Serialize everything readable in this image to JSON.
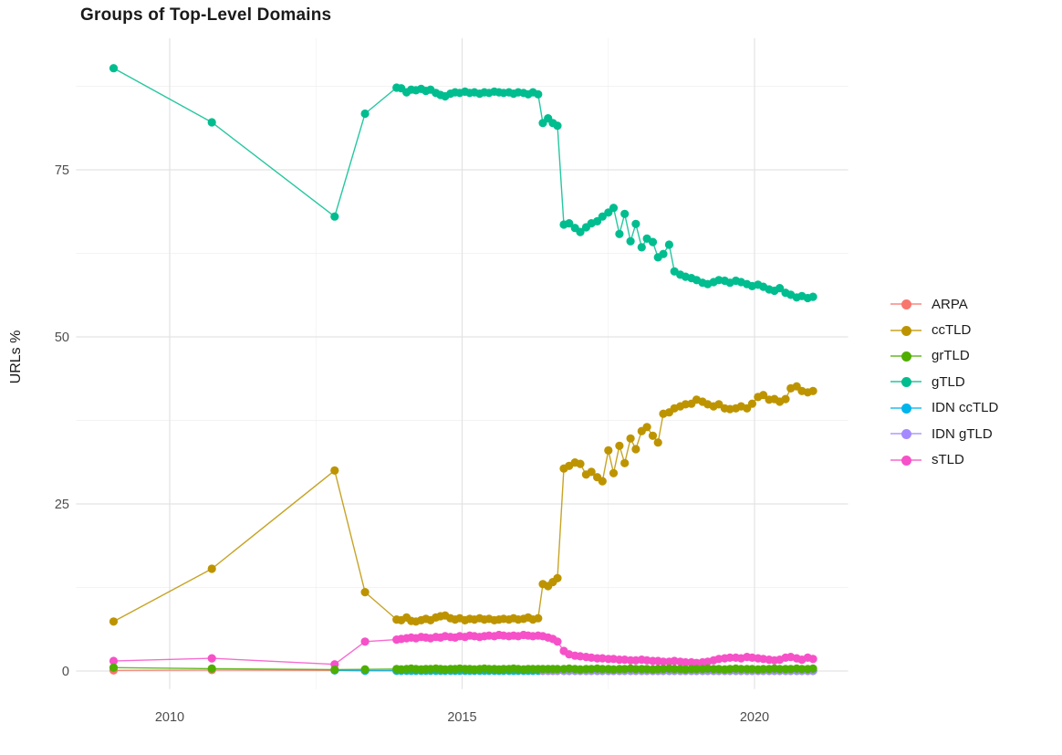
{
  "page": {
    "background": "#ffffff"
  },
  "chart_data": {
    "type": "line",
    "title": "Groups of Top-Level Domains",
    "xlabel": "",
    "ylabel": "URLs %",
    "grid": true,
    "legend_position": "right",
    "x_ticks": [
      2010,
      2015,
      2020
    ],
    "x_minor_ticks": [
      2012.5,
      2017.5
    ],
    "y_ticks": [
      0,
      25,
      50,
      75
    ],
    "y_minor_ticks": [
      12.5,
      37.5,
      62.5,
      87.5
    ],
    "xlim": [
      2008.4,
      2021.6
    ],
    "ylim": [
      -2.7,
      94.7
    ],
    "axis_text_color": "#4d4d4d",
    "grid_major_color": "#e3e3e3",
    "grid_minor_color": "#efefef",
    "x": [
      2009.04,
      2010.72,
      2012.82,
      2013.34,
      2013.88,
      2013.96,
      2014.05,
      2014.13,
      2014.21,
      2014.3,
      2014.38,
      2014.46,
      2014.55,
      2014.63,
      2014.71,
      2014.8,
      2014.88,
      2014.96,
      2015.05,
      2015.13,
      2015.21,
      2015.3,
      2015.38,
      2015.46,
      2015.55,
      2015.63,
      2015.71,
      2015.8,
      2015.88,
      2015.96,
      2016.05,
      2016.13,
      2016.21,
      2016.3,
      2016.38,
      2016.47,
      2016.55,
      2016.63,
      2016.74,
      2016.83,
      2016.93,
      2017.02,
      2017.12,
      2017.21,
      2017.31,
      2017.4,
      2017.5,
      2017.59,
      2017.69,
      2017.78,
      2017.88,
      2017.97,
      2018.07,
      2018.16,
      2018.26,
      2018.35,
      2018.44,
      2018.54,
      2018.63,
      2018.73,
      2018.82,
      2018.92,
      2019.01,
      2019.11,
      2019.2,
      2019.3,
      2019.39,
      2019.49,
      2019.58,
      2019.68,
      2019.77,
      2019.87,
      2019.96,
      2020.06,
      2020.15,
      2020.25,
      2020.34,
      2020.43,
      2020.53,
      2020.62,
      2020.72,
      2020.81,
      2020.91,
      2021.0
    ],
    "series": [
      {
        "name": "ARPA",
        "color": "#F8766D",
        "values": [
          0.1,
          0.15,
          0.1,
          0.05,
          0.05,
          0.05,
          0.05,
          0.05,
          0.05,
          0.05,
          0.05,
          0.05,
          0.05,
          0.05,
          0.05,
          0.05,
          0.05,
          0.05,
          0.05,
          0.05,
          0.05,
          0.05,
          0.05,
          0.05,
          0.05,
          0.05,
          0.05,
          0.05,
          0.05,
          0.05,
          0.05,
          0.05,
          0.05,
          0.05,
          0.05,
          0.05,
          0.05,
          0.05,
          0.05,
          0.05,
          0.05,
          0.05,
          0.05,
          0.05,
          0.05,
          0.05,
          0.05,
          0.05,
          0.05,
          0.05,
          0.05,
          0.05,
          0.05,
          0.05,
          0.05,
          0.05,
          0.05,
          0.05,
          0.05,
          0.05,
          0.05,
          0.05,
          0.05,
          0.05,
          0.05,
          0.05,
          0.05,
          0.05,
          0.05,
          0.05,
          0.05,
          0.05,
          0.05,
          0.05,
          0.05,
          0.05,
          0.05,
          0.05,
          0.05,
          0.05,
          0.05,
          0.05,
          0.05,
          0.05
        ]
      },
      {
        "name": "ccTLD",
        "color": "#BD9400",
        "values": [
          7.4,
          15.3,
          30.0,
          11.8,
          7.7,
          7.6,
          8.0,
          7.5,
          7.4,
          7.6,
          7.8,
          7.6,
          8.0,
          8.2,
          8.3,
          7.9,
          7.7,
          7.9,
          7.6,
          7.8,
          7.7,
          7.9,
          7.7,
          7.8,
          7.6,
          7.7,
          7.8,
          7.7,
          7.9,
          7.7,
          7.8,
          8.0,
          7.7,
          7.9,
          13.0,
          12.7,
          13.3,
          13.9,
          30.3,
          30.7,
          31.2,
          31.0,
          29.4,
          29.8,
          29.0,
          28.4,
          33.0,
          29.6,
          33.7,
          31.1,
          34.8,
          33.2,
          35.9,
          36.5,
          35.2,
          34.2,
          38.5,
          38.7,
          39.3,
          39.6,
          39.9,
          40.0,
          40.6,
          40.3,
          39.9,
          39.6,
          39.9,
          39.3,
          39.2,
          39.3,
          39.6,
          39.3,
          40.0,
          41.0,
          41.3,
          40.6,
          40.7,
          40.3,
          40.7,
          42.3,
          42.6,
          41.9,
          41.7,
          41.9
        ]
      },
      {
        "name": "grTLD",
        "color": "#4FAE00",
        "values": [
          0.5,
          0.35,
          0.2,
          0.25,
          0.3,
          0.25,
          0.3,
          0.35,
          0.3,
          0.25,
          0.3,
          0.3,
          0.35,
          0.3,
          0.25,
          0.3,
          0.3,
          0.35,
          0.3,
          0.3,
          0.25,
          0.3,
          0.35,
          0.3,
          0.3,
          0.25,
          0.3,
          0.3,
          0.35,
          0.3,
          0.25,
          0.3,
          0.3,
          0.3,
          0.3,
          0.3,
          0.3,
          0.3,
          0.3,
          0.35,
          0.3,
          0.25,
          0.3,
          0.3,
          0.35,
          0.3,
          0.3,
          0.25,
          0.3,
          0.3,
          0.35,
          0.3,
          0.3,
          0.3,
          0.25,
          0.3,
          0.3,
          0.35,
          0.3,
          0.3,
          0.25,
          0.3,
          0.3,
          0.3,
          0.35,
          0.3,
          0.3,
          0.25,
          0.3,
          0.35,
          0.3,
          0.3,
          0.3,
          0.25,
          0.3,
          0.3,
          0.35,
          0.3,
          0.3,
          0.3,
          0.35,
          0.3,
          0.3,
          0.35
        ]
      },
      {
        "name": "gTLD",
        "color": "#00BD8F",
        "values": [
          90.2,
          82.1,
          68.0,
          83.4,
          87.3,
          87.2,
          86.6,
          87.0,
          86.9,
          87.1,
          86.8,
          87.0,
          86.5,
          86.2,
          86.0,
          86.4,
          86.6,
          86.5,
          86.7,
          86.5,
          86.6,
          86.4,
          86.6,
          86.5,
          86.7,
          86.6,
          86.5,
          86.6,
          86.4,
          86.6,
          86.5,
          86.3,
          86.6,
          86.3,
          82.0,
          82.7,
          82.0,
          81.6,
          66.8,
          67.0,
          66.3,
          65.7,
          66.4,
          67.0,
          67.3,
          68.0,
          68.6,
          69.3,
          65.4,
          68.4,
          64.3,
          66.9,
          63.4,
          64.7,
          64.2,
          61.9,
          62.4,
          63.8,
          59.8,
          59.3,
          59.0,
          58.8,
          58.5,
          58.1,
          57.9,
          58.2,
          58.5,
          58.4,
          58.1,
          58.4,
          58.2,
          57.9,
          57.6,
          57.8,
          57.5,
          57.1,
          56.9,
          57.3,
          56.6,
          56.3,
          55.9,
          56.1,
          55.8,
          56.0
        ]
      },
      {
        "name": "IDN ccTLD",
        "color": "#00B4EC",
        "values": [
          null,
          null,
          0.1,
          0.05,
          0.05,
          0.05,
          0.05,
          0.05,
          0.05,
          0.05,
          0.05,
          0.05,
          0.05,
          0.05,
          0.05,
          0.05,
          0.05,
          0.05,
          0.05,
          0.05,
          0.05,
          0.05,
          0.05,
          0.05,
          0.05,
          0.05,
          0.05,
          0.05,
          0.05,
          0.05,
          0.05,
          0.05,
          0.05,
          0.05,
          0.05,
          0.05,
          0.05,
          0.05,
          0.03,
          0.03,
          0.03,
          0.03,
          0.03,
          0.03,
          0.03,
          0.03,
          0.03,
          0.03,
          0.03,
          0.03,
          0.03,
          0.03,
          0.03,
          0.03,
          0.03,
          0.03,
          0.03,
          0.03,
          0.03,
          0.03,
          0.03,
          0.03,
          0.03,
          0.03,
          0.03,
          0.03,
          0.03,
          0.03,
          0.03,
          0.03,
          0.03,
          0.03,
          0.03,
          0.03,
          0.03,
          0.03,
          0.03,
          0.03,
          0.03,
          0.03,
          0.03,
          0.03,
          0.03,
          0.03
        ]
      },
      {
        "name": "IDN gTLD",
        "color": "#A58AFF",
        "values": [
          null,
          null,
          null,
          null,
          null,
          null,
          null,
          null,
          null,
          null,
          null,
          null,
          null,
          null,
          null,
          null,
          null,
          null,
          null,
          null,
          null,
          null,
          null,
          null,
          null,
          null,
          null,
          null,
          null,
          null,
          null,
          null,
          null,
          null,
          0.03,
          0.03,
          0.03,
          0.03,
          0.03,
          0.03,
          0.03,
          0.03,
          0.03,
          0.03,
          0.03,
          0.03,
          0.03,
          0.03,
          0.03,
          0.03,
          0.03,
          0.03,
          0.03,
          0.03,
          0.03,
          0.03,
          0.03,
          0.03,
          0.03,
          0.03,
          0.03,
          0.03,
          0.03,
          0.03,
          0.03,
          0.03,
          0.03,
          0.03,
          0.03,
          0.03,
          0.03,
          0.03,
          0.03,
          0.03,
          0.03,
          0.03,
          0.03,
          0.03,
          0.03,
          0.03,
          0.03,
          0.03,
          0.03,
          0.03
        ]
      },
      {
        "name": "sTLD",
        "color": "#F651C8",
        "values": [
          1.5,
          1.9,
          1.0,
          4.4,
          4.7,
          4.8,
          4.9,
          5.0,
          4.9,
          5.1,
          5.0,
          4.9,
          5.1,
          5.0,
          5.2,
          5.1,
          5.0,
          5.2,
          5.1,
          5.3,
          5.2,
          5.1,
          5.2,
          5.3,
          5.2,
          5.4,
          5.3,
          5.2,
          5.3,
          5.2,
          5.4,
          5.3,
          5.2,
          5.3,
          5.2,
          5.0,
          4.8,
          4.4,
          3.0,
          2.5,
          2.3,
          2.2,
          2.1,
          2.0,
          1.9,
          1.9,
          1.8,
          1.8,
          1.7,
          1.7,
          1.6,
          1.6,
          1.7,
          1.6,
          1.5,
          1.5,
          1.4,
          1.4,
          1.5,
          1.4,
          1.3,
          1.3,
          1.2,
          1.3,
          1.4,
          1.6,
          1.8,
          1.9,
          2.0,
          2.0,
          1.9,
          2.1,
          2.0,
          1.9,
          1.8,
          1.7,
          1.6,
          1.7,
          2.0,
          2.1,
          1.9,
          1.7,
          2.0,
          1.8
        ]
      }
    ],
    "draw_order": [
      "ARPA",
      "IDN ccTLD",
      "IDN gTLD",
      "sTLD",
      "ccTLD",
      "gTLD",
      "grTLD"
    ],
    "legend_order": [
      "ARPA",
      "ccTLD",
      "grTLD",
      "gTLD",
      "IDN ccTLD",
      "IDN gTLD",
      "sTLD"
    ]
  }
}
